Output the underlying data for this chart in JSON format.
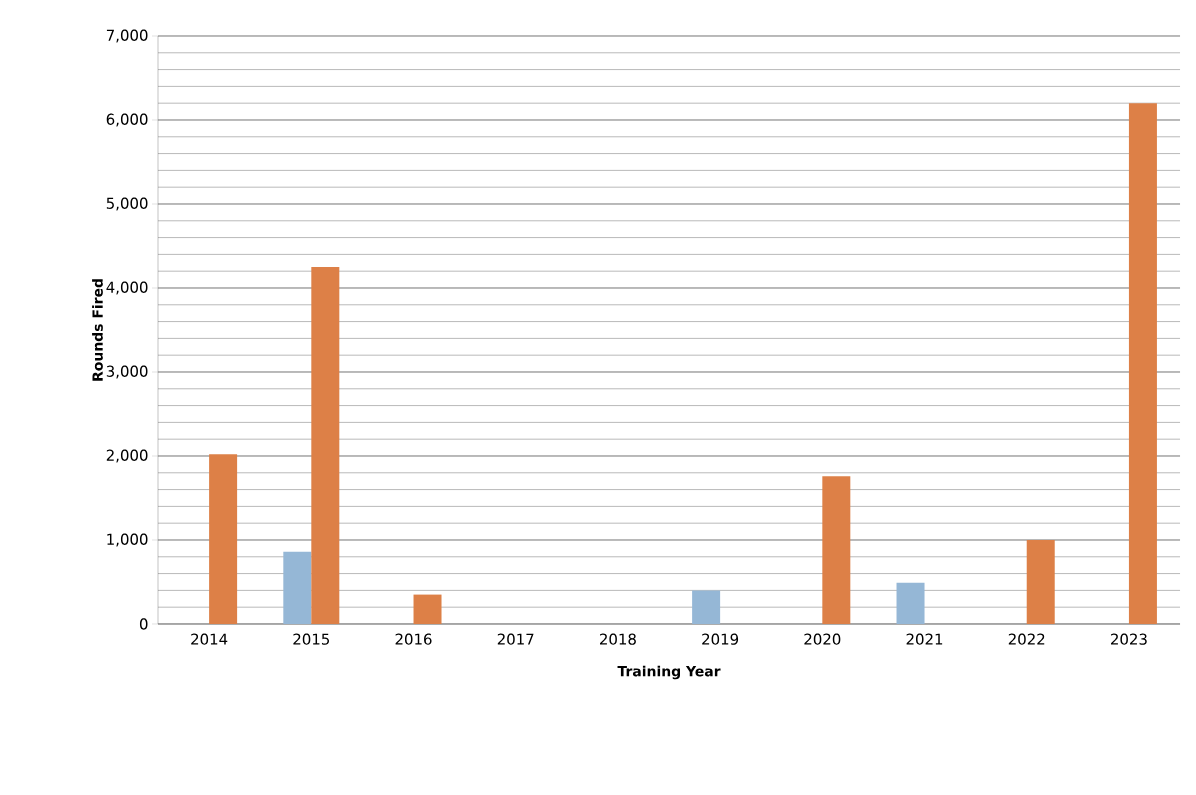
{
  "chart_data": {
    "type": "bar",
    "xlabel": "Training Year",
    "ylabel": "Rounds Fired",
    "categories": [
      "2014",
      "2015",
      "2016",
      "2017",
      "2018",
      "2019",
      "2020",
      "2021",
      "2022",
      "2023"
    ],
    "series": [
      {
        "color": "#95b7d6",
        "values": [
          0,
          860,
          0,
          0,
          0,
          400,
          0,
          490,
          0,
          0
        ]
      },
      {
        "color": "#dd8047",
        "values": [
          2020,
          4250,
          350,
          0,
          0,
          0,
          1760,
          0,
          1000,
          6200
        ]
      }
    ],
    "ylim": [
      0,
      7000
    ],
    "yticks": [
      {
        "value": 0,
        "label": "0"
      },
      {
        "value": 1000,
        "label": "1,000"
      },
      {
        "value": 2000,
        "label": "2,000"
      },
      {
        "value": 3000,
        "label": "3,000"
      },
      {
        "value": 4000,
        "label": "4,000"
      },
      {
        "value": 5000,
        "label": "5,000"
      },
      {
        "value": 6000,
        "label": "6,000"
      },
      {
        "value": 7000,
        "label": "7,000"
      }
    ],
    "grid": "y"
  }
}
